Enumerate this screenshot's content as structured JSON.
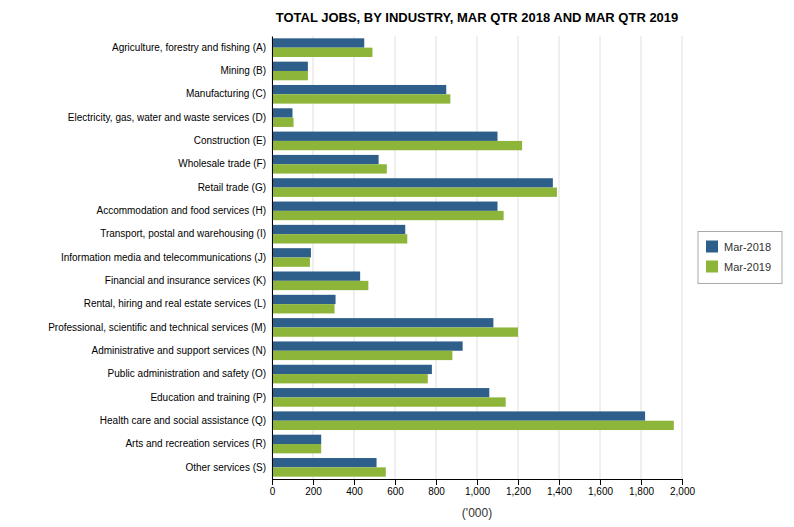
{
  "chart_data": {
    "type": "bar",
    "orientation": "horizontal",
    "title": "TOTAL JOBS, BY INDUSTRY, MAR QTR 2018 AND MAR QTR 2019",
    "categories": [
      "Agriculture, forestry and fishing (A)",
      "Mining (B)",
      "Manufacturing (C)",
      "Electricity, gas, water and waste services (D)",
      "Construction (E)",
      "Wholesale trade (F)",
      "Retail trade (G)",
      "Accommodation and food services (H)",
      "Transport, postal and warehousing (I)",
      "Information media and telecommunications (J)",
      "Financial and insurance services (K)",
      "Rental, hiring and real estate services (L)",
      "Professional, scientific and technical services (M)",
      "Administrative and support services (N)",
      "Public administration and safety (O)",
      "Education and training (P)",
      "Health care and social assistance (Q)",
      "Arts and recreation services (R)",
      "Other services (S)"
    ],
    "series": [
      {
        "name": "Mar-2018",
        "color": "#2E5F8A",
        "values": [
          450,
          175,
          850,
          100,
          1100,
          520,
          1370,
          1100,
          650,
          190,
          430,
          310,
          1080,
          930,
          780,
          1060,
          1820,
          240,
          510
        ]
      },
      {
        "name": "Mar-2019",
        "color": "#8DB53A",
        "values": [
          490,
          175,
          870,
          105,
          1220,
          560,
          1390,
          1130,
          660,
          185,
          470,
          305,
          1200,
          880,
          760,
          1140,
          1960,
          240,
          555
        ]
      }
    ],
    "xlabel": "('000)",
    "xlim": [
      0,
      2000
    ],
    "xticks": [
      0,
      200,
      400,
      600,
      800,
      {
        "value": 1000,
        "label": "1,000"
      },
      {
        "value": 1200,
        "label": "1,200"
      },
      {
        "value": 1400,
        "label": "1,400"
      },
      {
        "value": 1600,
        "label": "1,600"
      },
      {
        "value": 1800,
        "label": "1,800"
      },
      {
        "value": 2000,
        "label": "2,000"
      }
    ],
    "grid": true,
    "legend": "right"
  }
}
